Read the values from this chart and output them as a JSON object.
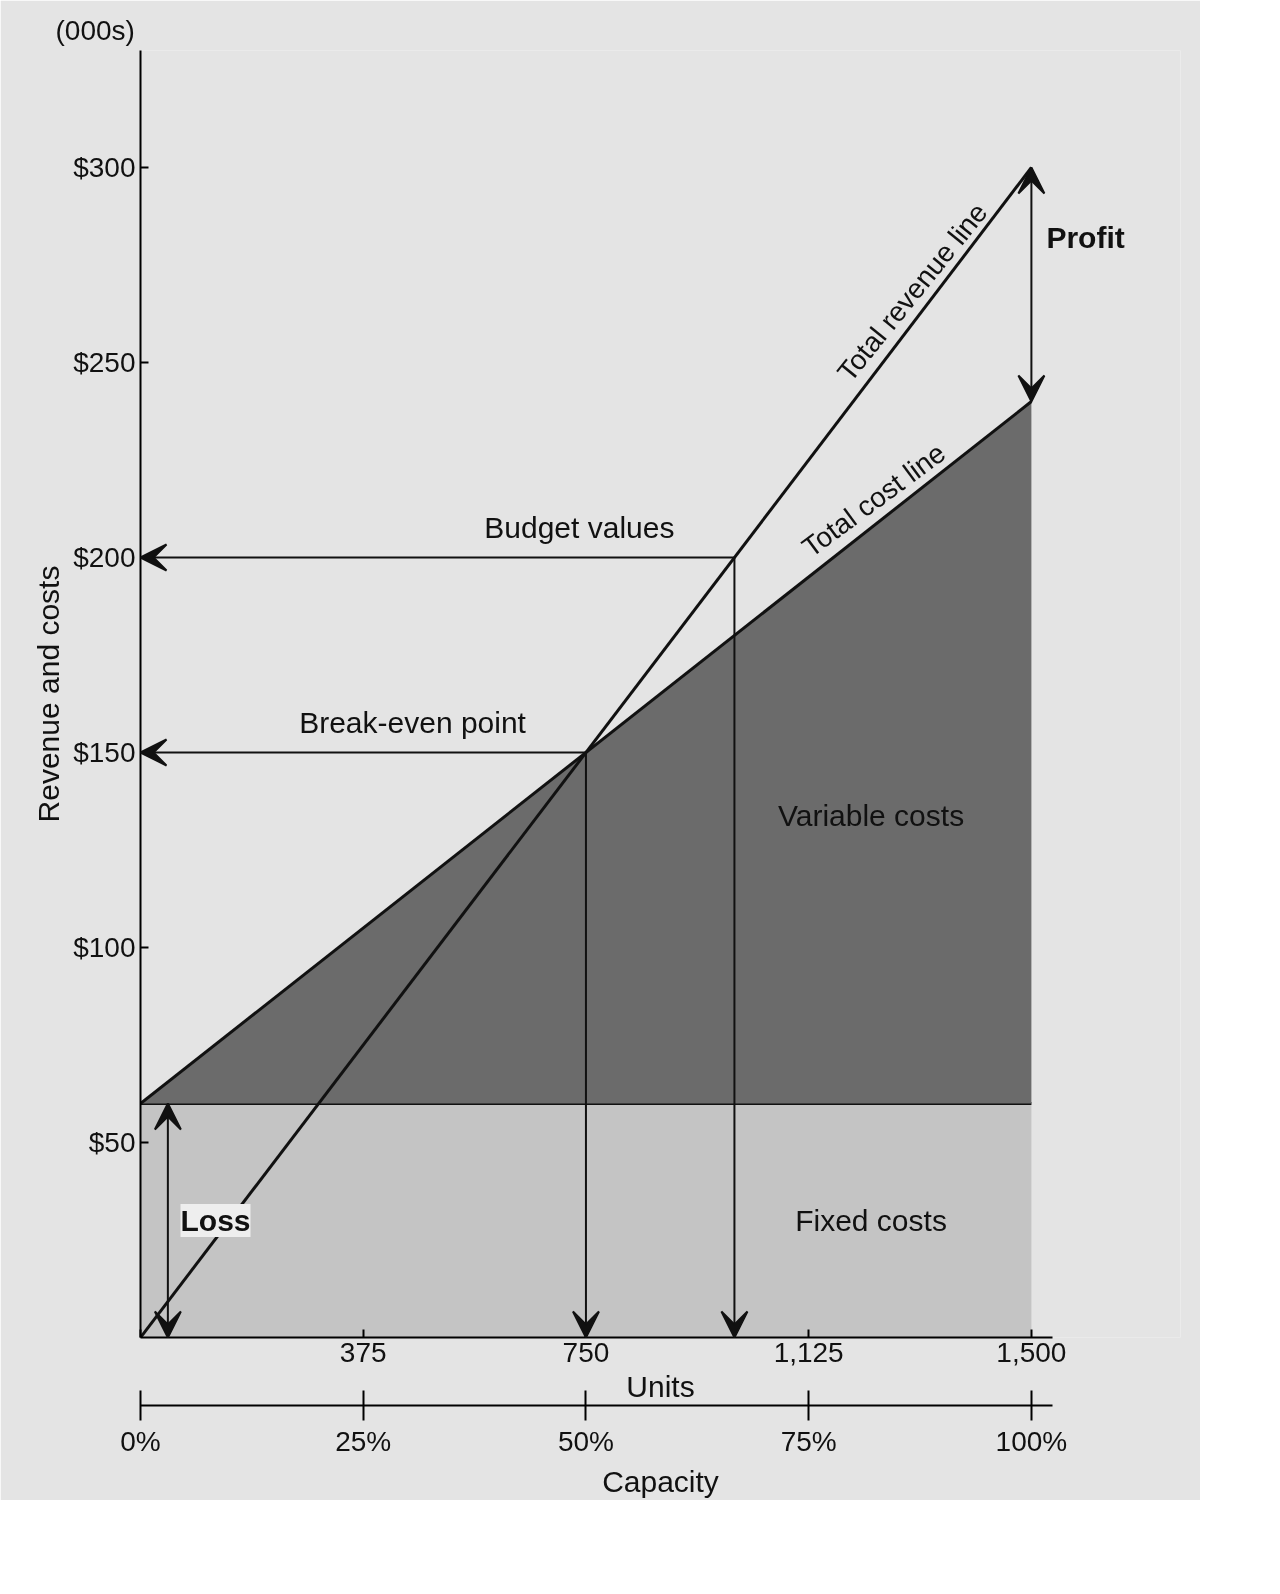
{
  "chart_data": {
    "type": "line",
    "xlabel": "Units",
    "ylabel": "Revenue and costs",
    "x2label": "Capacity",
    "x": [
      0,
      1500
    ],
    "stacked": true,
    "series": [
      {
        "name": "Fixed costs",
        "type": "area",
        "color": "#c4c4c4",
        "values": [
          60,
          60
        ]
      },
      {
        "name": "Variable costs",
        "type": "area",
        "color": "#6b6b6b",
        "values": [
          0,
          180
        ]
      },
      {
        "name": "Total revenue line",
        "color": "#111111",
        "values": [
          0,
          300
        ]
      }
    ],
    "xlim": [
      0,
      1536
    ],
    "ylim": [
      0,
      330
    ],
    "xticks": [
      {
        "value": 0,
        "label": null
      },
      375,
      750,
      {
        "value": 1125,
        "label": "1,125"
      },
      {
        "value": 1500,
        "label": "1,500"
      }
    ],
    "subtitle": "(000s)",
    "yticks": [
      {
        "value": 50,
        "label": "$50"
      },
      {
        "value": 100,
        "label": "$100"
      },
      {
        "value": 150,
        "label": "$150"
      },
      {
        "value": 200,
        "label": "$200"
      },
      {
        "value": 250,
        "label": "$250"
      },
      {
        "value": 300,
        "label": "$300"
      }
    ],
    "x2lim": [
      0,
      102.4
    ],
    "x2ticks": [
      {
        "value": 0,
        "label": "0%"
      },
      {
        "value": 25,
        "label": "25%"
      },
      {
        "value": 50,
        "label": "50%"
      },
      {
        "value": 75,
        "label": "75%"
      },
      {
        "value": 100,
        "label": "100%"
      }
    ],
    "annotations": [
      {
        "text": "Budget values",
        "x": 1000,
        "y": 200
      },
      {
        "text": "Break-even point",
        "x": 750,
        "y": 150
      },
      "Profit",
      {
        "text": "Loss",
        "x": 0,
        "y": 30
      },
      {
        "text": "Total cost line",
        "x": 1250,
        "y": 210
      }
    ],
    "line_style": "solid",
    "marker": "none"
  }
}
